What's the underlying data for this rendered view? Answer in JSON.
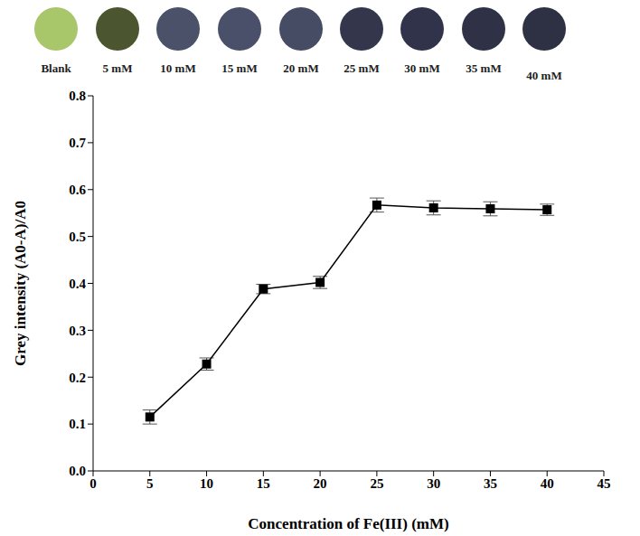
{
  "samples": [
    {
      "label": "Blank",
      "color": "#a8c66a"
    },
    {
      "label": "5 mM",
      "color": "#4b5631"
    },
    {
      "label": "10 mM",
      "color": "#4a5168"
    },
    {
      "label": "15 mM",
      "color": "#4a4f6a"
    },
    {
      "label": "20 mM",
      "color": "#474c65"
    },
    {
      "label": "25 mM",
      "color": "#34374b"
    },
    {
      "label": "30 mM",
      "color": "#31334a"
    },
    {
      "label": "35 mM",
      "color": "#2f3146"
    },
    {
      "label": "40 mM",
      "color": "#2e3043"
    }
  ],
  "chart_data": {
    "type": "line",
    "x_label": "Concentration of Fe(III) (mM)",
    "y_label": "Grey  intensity (A0-A)/A0",
    "x": [
      5,
      10,
      15,
      20,
      25,
      30,
      35,
      40
    ],
    "values": [
      0.115,
      0.228,
      0.388,
      0.402,
      0.567,
      0.561,
      0.559,
      0.557
    ],
    "errors": [
      0.015,
      0.013,
      0.01,
      0.013,
      0.015,
      0.015,
      0.015,
      0.012
    ],
    "color": "#000000",
    "marker": "square",
    "line_style": "solid",
    "xlim": [
      0,
      45
    ],
    "xticks": [
      0,
      5,
      10,
      15,
      20,
      25,
      30,
      35,
      40,
      45
    ],
    "ylim": [
      0,
      0.8
    ],
    "yticks": [
      {
        "value": 0,
        "label": "0.0"
      },
      0.1,
      0.2,
      0.3,
      0.4,
      0.5,
      0.6,
      0.7,
      0.8
    ],
    "grid": false
  }
}
